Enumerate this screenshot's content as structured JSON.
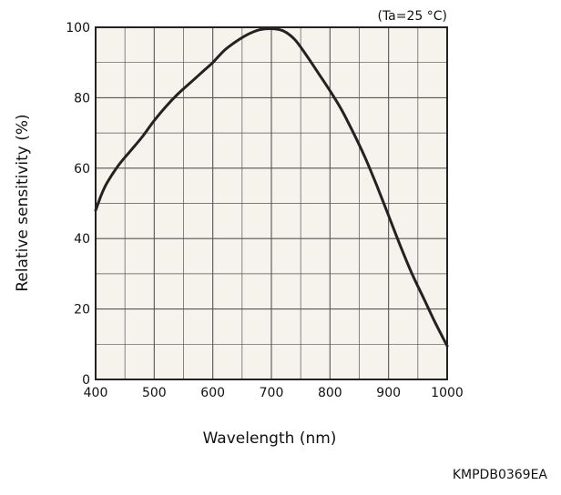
{
  "chart_data": {
    "type": "line",
    "condition": "(Ta=25 °C)",
    "xlabel": "Wavelength (nm)",
    "ylabel": "Relative sensitivity (%)",
    "xlim": [
      400,
      1000
    ],
    "ylim": [
      0,
      100
    ],
    "xticks": [
      400,
      500,
      600,
      700,
      800,
      900,
      1000
    ],
    "yticks": [
      0,
      20,
      40,
      60,
      80,
      100
    ],
    "xminor_step": 50,
    "yminor_step": 10,
    "grid": true,
    "plot_bg": "#f5f3ec",
    "grid_color": "#555555",
    "line_color": "#222222",
    "series": [
      {
        "x": [
          400,
          410,
          420,
          440,
          460,
          480,
          500,
          520,
          540,
          560,
          580,
          600,
          620,
          640,
          660,
          680,
          700,
          720,
          740,
          760,
          780,
          800,
          820,
          840,
          860,
          880,
          900,
          920,
          940,
          960,
          980,
          1000
        ],
        "y": [
          48,
          52.5,
          56,
          61,
          65,
          69,
          73.5,
          77.5,
          81,
          84,
          87,
          90,
          93.5,
          96,
          98,
          99.3,
          99.6,
          99,
          96.5,
          92,
          87,
          82,
          76.5,
          70,
          63,
          55,
          46.5,
          38,
          30,
          23,
          16,
          9.5
        ]
      }
    ]
  },
  "figure_code": "KMPDB0369EA"
}
